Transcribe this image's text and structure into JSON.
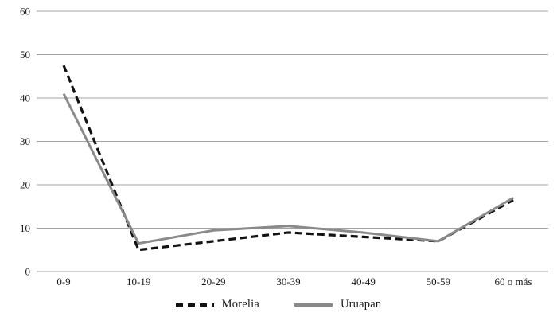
{
  "chart_data": {
    "type": "line",
    "title": "",
    "xlabel": "",
    "ylabel": "",
    "categories": [
      "0-9",
      "10-19",
      "20-29",
      "30-39",
      "40-49",
      "50-59",
      "60 o más"
    ],
    "series": [
      {
        "name": "Morelia",
        "values": [
          47.5,
          5,
          7,
          9,
          8,
          7,
          16.5
        ],
        "color": "#121212",
        "style": "dashed"
      },
      {
        "name": "Uruapan",
        "values": [
          41,
          6.5,
          9.5,
          10.5,
          9,
          7,
          17
        ],
        "color": "#8a8a8a",
        "style": "solid"
      }
    ],
    "ylim": [
      0,
      60
    ],
    "yticks": [
      0,
      10,
      20,
      30,
      40,
      50,
      60
    ],
    "grid": true,
    "legend_position": "bottom",
    "gridline_color": "#a3a3a3",
    "text_color": "#1a1a1a",
    "background": "#ffffff"
  }
}
